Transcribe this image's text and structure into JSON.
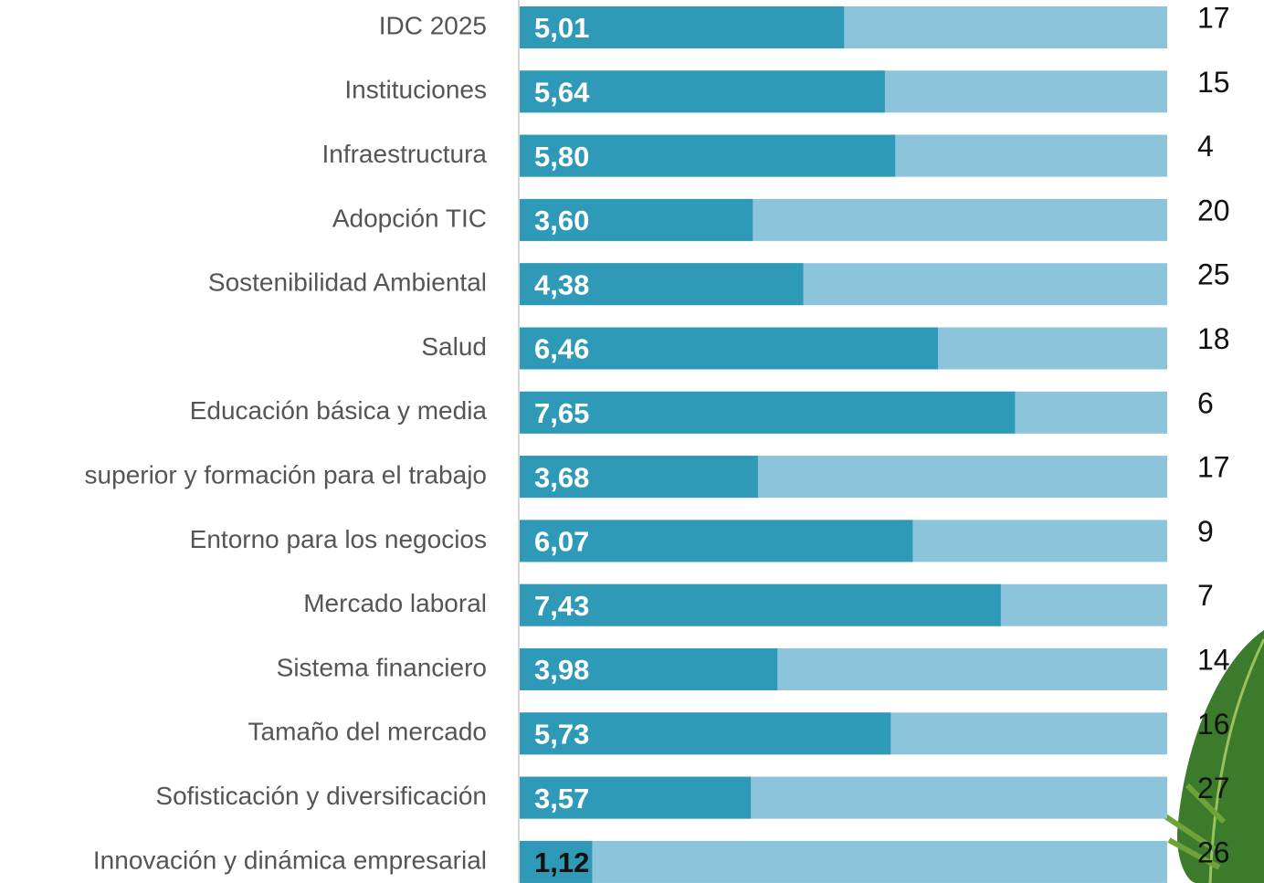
{
  "chart_data": {
    "type": "bar",
    "orientation": "horizontal",
    "categories": [
      "IDC 2025",
      "Instituciones",
      "Infraestructura",
      "Adopción TIC",
      "Sostenibilidad Ambiental",
      "Salud",
      "Educación básica y media",
      "superior y formación para el trabajo",
      "Entorno para los negocios",
      "Mercado laboral",
      "Sistema financiero",
      "Tamaño del mercado",
      "Sofisticación y diversificación",
      "Innovación y dinámica empresarial"
    ],
    "values": [
      5.01,
      5.64,
      5.8,
      3.6,
      4.38,
      6.46,
      7.65,
      3.68,
      6.07,
      7.43,
      3.98,
      5.73,
      3.57,
      1.12
    ],
    "value_labels": [
      "5,01",
      "5,64",
      "5,80",
      "3,60",
      "4,38",
      "6,46",
      "7,65",
      "3,68",
      "6,07",
      "7,43",
      "3,98",
      "5,73",
      "3,57",
      "1,12"
    ],
    "ranks": [
      17,
      15,
      4,
      20,
      25,
      18,
      6,
      17,
      9,
      7,
      14,
      16,
      27,
      26
    ],
    "xlim": [
      0,
      10
    ],
    "color": "#2e9ab7",
    "track_color": "#8bc4db"
  }
}
